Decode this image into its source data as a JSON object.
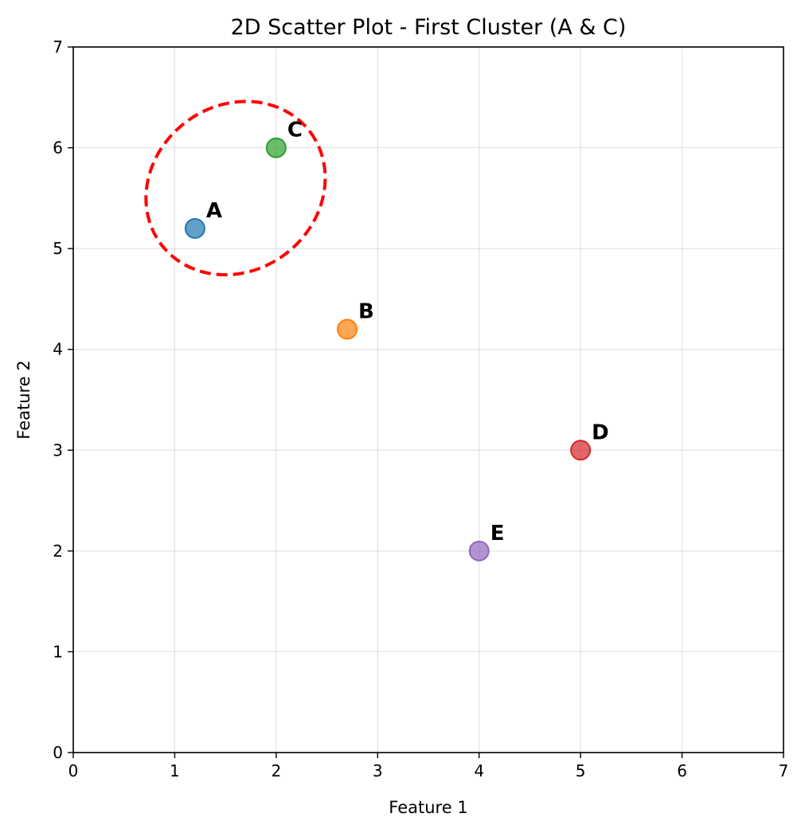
{
  "chart_data": {
    "type": "scatter",
    "title": "2D Scatter Plot - First Cluster (A & C)",
    "xlabel": "Feature 1",
    "ylabel": "Feature 2",
    "xlim": [
      0,
      7
    ],
    "ylim": [
      0,
      7
    ],
    "xticks": [
      0,
      1,
      2,
      3,
      4,
      5,
      6,
      7
    ],
    "yticks": [
      0,
      1,
      2,
      3,
      4,
      5,
      6,
      7
    ],
    "grid": true,
    "points": [
      {
        "label": "A",
        "x": 1.2,
        "y": 5.2,
        "color": "#1f77b4"
      },
      {
        "label": "B",
        "x": 2.7,
        "y": 4.2,
        "color": "#ff7f0e"
      },
      {
        "label": "C",
        "x": 2.0,
        "y": 6.0,
        "color": "#2ca02c"
      },
      {
        "label": "D",
        "x": 5.0,
        "y": 3.0,
        "color": "#d62728"
      },
      {
        "label": "E",
        "x": 4.0,
        "y": 2.0,
        "color": "#9467bd"
      }
    ],
    "cluster_ellipse": {
      "members": [
        "A",
        "C"
      ],
      "center": [
        1.6,
        5.6
      ],
      "semi_axis_major": 0.92,
      "semi_axis_minor": 0.82,
      "angle_deg": 37,
      "color": "#ff0000",
      "style": "dashed"
    }
  }
}
